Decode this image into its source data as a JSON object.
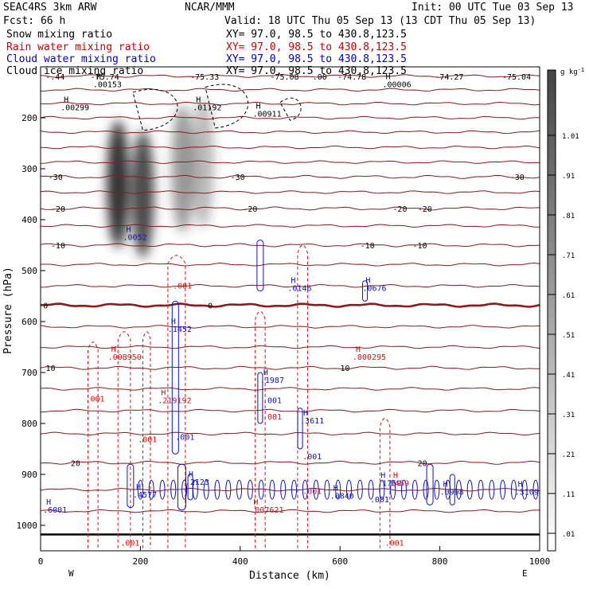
{
  "header": {
    "model": "SEAC4RS  3km ARW",
    "org": "NCAR/MMM",
    "init": "Init: 00 UTC Tue 03 Sep 13",
    "fcst": "Fcst:   66 h",
    "valid": "Valid: 18 UTC Thu 05 Sep 13 (13 CDT Thu 05 Sep 13)",
    "fields": [
      {
        "name": "Snow mixing ratio",
        "xy": "XY=  97.0, 98.5 to 430.8,123.5",
        "color": "#000000"
      },
      {
        "name": "Rain water mixing ratio",
        "xy": "XY=  97.0, 98.5 to 430.8,123.5",
        "color": "#cc0000"
      },
      {
        "name": "Cloud water mixing ratio",
        "xy": "XY=  97.0, 98.5 to 430.8,123.5",
        "color": "#0000cc"
      },
      {
        "name": "Cloud ice mixing ratio",
        "xy": "XY=  97.0, 98.5 to 430.8,123.5",
        "color": "#000000"
      }
    ]
  },
  "colors": {
    "temperature": "#8b1a1a",
    "rain": "#dd1111",
    "cloud_water": "#1111cc",
    "snow_shade": "#333333",
    "text": "#000000"
  },
  "chart_data": {
    "type": "cross-section",
    "xlabel": "Distance (km)",
    "ylabel": "Pressure (hPa)",
    "xlim": [
      0,
      1000
    ],
    "ylim": [
      1050,
      100
    ],
    "x_ticks": [
      0,
      200,
      400,
      600,
      800,
      1000
    ],
    "y_ticks": [
      200,
      300,
      400,
      500,
      600,
      700,
      800,
      900,
      1000
    ],
    "x_end_labels": {
      "left": "W",
      "right": "E"
    },
    "colorbar": {
      "unit": "g kg",
      "unit_exp": "-1",
      "labels": [
        ".01",
        ".11",
        ".21",
        ".31",
        ".41",
        ".51",
        ".61",
        ".71",
        ".81",
        ".91",
        "1.01"
      ]
    },
    "isotherms": [
      {
        "label": "-30",
        "p": 316,
        "labels_at": [
          30,
          395,
          955
        ]
      },
      {
        "label": "-20",
        "p": 378,
        "labels_at": [
          35,
          420,
          720,
          770
        ]
      },
      {
        "label": "-10",
        "p": 450,
        "labels_at": [
          35,
          655,
          760
        ]
      },
      {
        "label": "0",
        "p": 568,
        "labels_at": [
          10,
          340
        ]
      },
      {
        "label": "10",
        "p": 691,
        "labels_at": [
          20,
          610
        ]
      },
      {
        "label": "20",
        "p": 877,
        "labels_at": [
          70,
          765
        ]
      }
    ],
    "surface_p": 1018,
    "top_labels": [
      {
        "text": "-.44",
        "x": 10
      },
      {
        "text": "-75.74",
        "x": 100
      },
      {
        "text": "-75.33",
        "x": 300
      },
      {
        "text": "-75.08",
        "x": 460
      },
      {
        "text": ".00",
        "x": 545
      },
      {
        "text": "-74.78",
        "x": 595
      },
      {
        "text": "-74.27",
        "x": 790
      },
      {
        "text": "-75.04",
        "x": 925
      }
    ],
    "annotations": [
      {
        "field": "snow",
        "mark": "H",
        "x": 105,
        "p": 140,
        "value": ".00153"
      },
      {
        "field": "snow",
        "mark": "H",
        "x": 40,
        "p": 185,
        "value": ".00299"
      },
      {
        "field": "snow",
        "mark": "H",
        "x": 305,
        "p": 185,
        "value": ".01192"
      },
      {
        "field": "snow",
        "mark": "H",
        "x": 425,
        "p": 198,
        "value": ".00911"
      },
      {
        "field": "snow",
        "mark": "H",
        "x": 685,
        "p": 140,
        "value": ".00006"
      },
      {
        "field": "cloud",
        "mark": "H",
        "x": 165,
        "p": 440,
        "value": ".0052"
      },
      {
        "field": "cloud",
        "mark": "H",
        "x": 495,
        "p": 540,
        "value": ".0146"
      },
      {
        "field": "cloud",
        "mark": "H",
        "x": 645,
        "p": 540,
        "value": ".0676"
      },
      {
        "field": "rain",
        "mark": "",
        "x": 265,
        "p": 535,
        "value": ".001"
      },
      {
        "field": "cloud",
        "mark": "H",
        "x": 255,
        "p": 620,
        "value": ".1452"
      },
      {
        "field": "rain",
        "mark": "H",
        "x": 135,
        "p": 675,
        "value": ".008950"
      },
      {
        "field": "rain",
        "mark": "H",
        "x": 625,
        "p": 675,
        "value": ".000295"
      },
      {
        "field": "cloud",
        "mark": "H",
        "x": 440,
        "p": 720,
        "value": ".1987"
      },
      {
        "field": "rain",
        "mark": "H",
        "x": 235,
        "p": 760,
        "value": ".219192"
      },
      {
        "field": "cloud",
        "mark": "",
        "x": 445,
        "p": 760,
        "value": ".001"
      },
      {
        "field": "rain",
        "mark": "",
        "x": 90,
        "p": 757,
        "value": ".001"
      },
      {
        "field": "rain",
        "mark": "",
        "x": 445,
        "p": 792,
        "value": ".001"
      },
      {
        "field": "cloud",
        "mark": "H",
        "x": 520,
        "p": 800,
        "value": ".3611"
      },
      {
        "field": "cloud",
        "mark": "",
        "x": 270,
        "p": 832,
        "value": ".001"
      },
      {
        "field": "rain",
        "mark": "",
        "x": 195,
        "p": 837,
        "value": ".001"
      },
      {
        "field": "cloud",
        "mark": "",
        "x": 525,
        "p": 870,
        "value": ".001"
      },
      {
        "field": "cloud",
        "mark": "H",
        "x": 290,
        "p": 920,
        "value": ".2123"
      },
      {
        "field": "cloud",
        "mark": "H",
        "x": 185,
        "p": 945,
        "value": ".4577"
      },
      {
        "field": "cloud",
        "mark": "H",
        "x": 580,
        "p": 948,
        "value": ".0840"
      },
      {
        "field": "cloud",
        "mark": "H",
        "x": 675,
        "p": 923,
        "value": ".1769"
      },
      {
        "field": "rain",
        "mark": "H",
        "x": 700,
        "p": 923,
        "value": ".459"
      },
      {
        "field": "cloud",
        "mark": "",
        "x": 660,
        "p": 955,
        "value": ".001"
      },
      {
        "field": "rain",
        "mark": "",
        "x": 525,
        "p": 938,
        "value": ".001"
      },
      {
        "field": "cloud",
        "mark": "H",
        "x": 800,
        "p": 940,
        "value": ".0998"
      },
      {
        "field": "cloud",
        "mark": "H",
        "x": 950,
        "p": 940,
        "value": ".3109"
      },
      {
        "field": "rain",
        "mark": "H",
        "x": 420,
        "p": 975,
        "value": ".007621"
      },
      {
        "field": "cloud",
        "mark": "H",
        "x": 5,
        "p": 975,
        "value": ".6001"
      },
      {
        "field": "rain",
        "mark": "",
        "x": 160,
        "p": 1040,
        "value": ".001"
      },
      {
        "field": "rain",
        "mark": "",
        "x": 690,
        "p": 1040,
        "value": ".001"
      }
    ],
    "snow_cores": [
      {
        "x": 155,
        "p": 330,
        "max": 1.0
      },
      {
        "x": 205,
        "p": 350,
        "max": 0.9
      },
      {
        "x": 285,
        "p": 300,
        "max": 0.5
      },
      {
        "x": 325,
        "p": 290,
        "max": 0.35
      }
    ],
    "rain_columns": [
      {
        "x0": 95,
        "x1": 115,
        "p_top": 640
      },
      {
        "x0": 155,
        "x1": 180,
        "p_top": 620
      },
      {
        "x0": 205,
        "x1": 220,
        "p_top": 620
      },
      {
        "x0": 255,
        "x1": 290,
        "p_top": 470
      },
      {
        "x0": 430,
        "x1": 450,
        "p_top": 580
      },
      {
        "x0": 515,
        "x1": 535,
        "p_top": 450
      },
      {
        "x0": 680,
        "x1": 700,
        "p_top": 790
      }
    ]
  }
}
